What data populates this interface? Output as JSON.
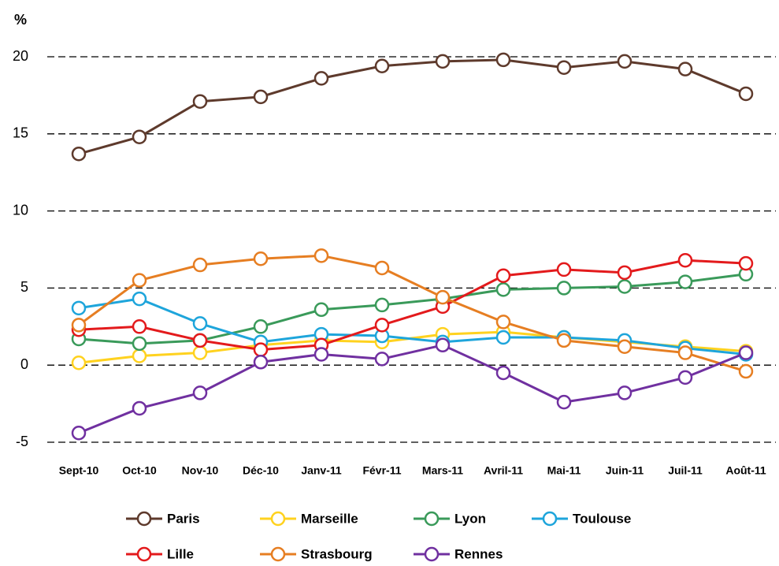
{
  "chart_data": {
    "type": "line",
    "y_label": "%",
    "categories": [
      "Sept-10",
      "Oct-10",
      "Nov-10",
      "Déc-10",
      "Janv-11",
      "Févr-11",
      "Mars-11",
      "Avril-11",
      "Mai-11",
      "Juin-11",
      "Juil-11",
      "Août-11"
    ],
    "ylim": [
      -5,
      20
    ],
    "yticks": [
      -5,
      0,
      5,
      10,
      15,
      20
    ],
    "grid": true,
    "series": [
      {
        "name": "Paris",
        "color": "#5e3a2c",
        "values": [
          13.7,
          14.8,
          17.1,
          17.4,
          18.6,
          19.4,
          19.7,
          19.8,
          19.3,
          19.7,
          19.2,
          17.6
        ]
      },
      {
        "name": "Marseille",
        "color": "#ffd21f",
        "values": [
          0.15,
          0.6,
          0.8,
          1.3,
          1.6,
          1.5,
          2.0,
          2.15,
          1.8,
          1.5,
          1.2,
          0.9
        ]
      },
      {
        "name": "Lyon",
        "color": "#3a9a5a",
        "values": [
          1.7,
          1.4,
          1.6,
          2.5,
          3.6,
          3.9,
          4.3,
          4.9,
          5.0,
          5.1,
          5.4,
          5.9
        ]
      },
      {
        "name": "Toulouse",
        "color": "#1ea5db",
        "values": [
          3.7,
          4.3,
          2.7,
          1.5,
          2.0,
          1.9,
          1.5,
          1.8,
          1.8,
          1.6,
          1.1,
          0.7
        ]
      },
      {
        "name": "Lille",
        "color": "#e31a1c",
        "values": [
          2.3,
          2.5,
          1.6,
          1.0,
          1.3,
          2.6,
          3.8,
          5.8,
          6.2,
          6.0,
          6.8,
          6.6
        ]
      },
      {
        "name": "Strasbourg",
        "color": "#e67e22",
        "values": [
          2.6,
          5.5,
          6.5,
          6.9,
          7.1,
          6.3,
          4.4,
          2.8,
          1.6,
          1.2,
          0.8,
          -0.4
        ]
      },
      {
        "name": "Rennes",
        "color": "#7030a0",
        "values": [
          -4.4,
          -2.8,
          -1.8,
          0.2,
          0.7,
          0.4,
          1.3,
          -0.5,
          -2.4,
          -1.8,
          -0.8,
          0.8
        ]
      }
    ]
  }
}
